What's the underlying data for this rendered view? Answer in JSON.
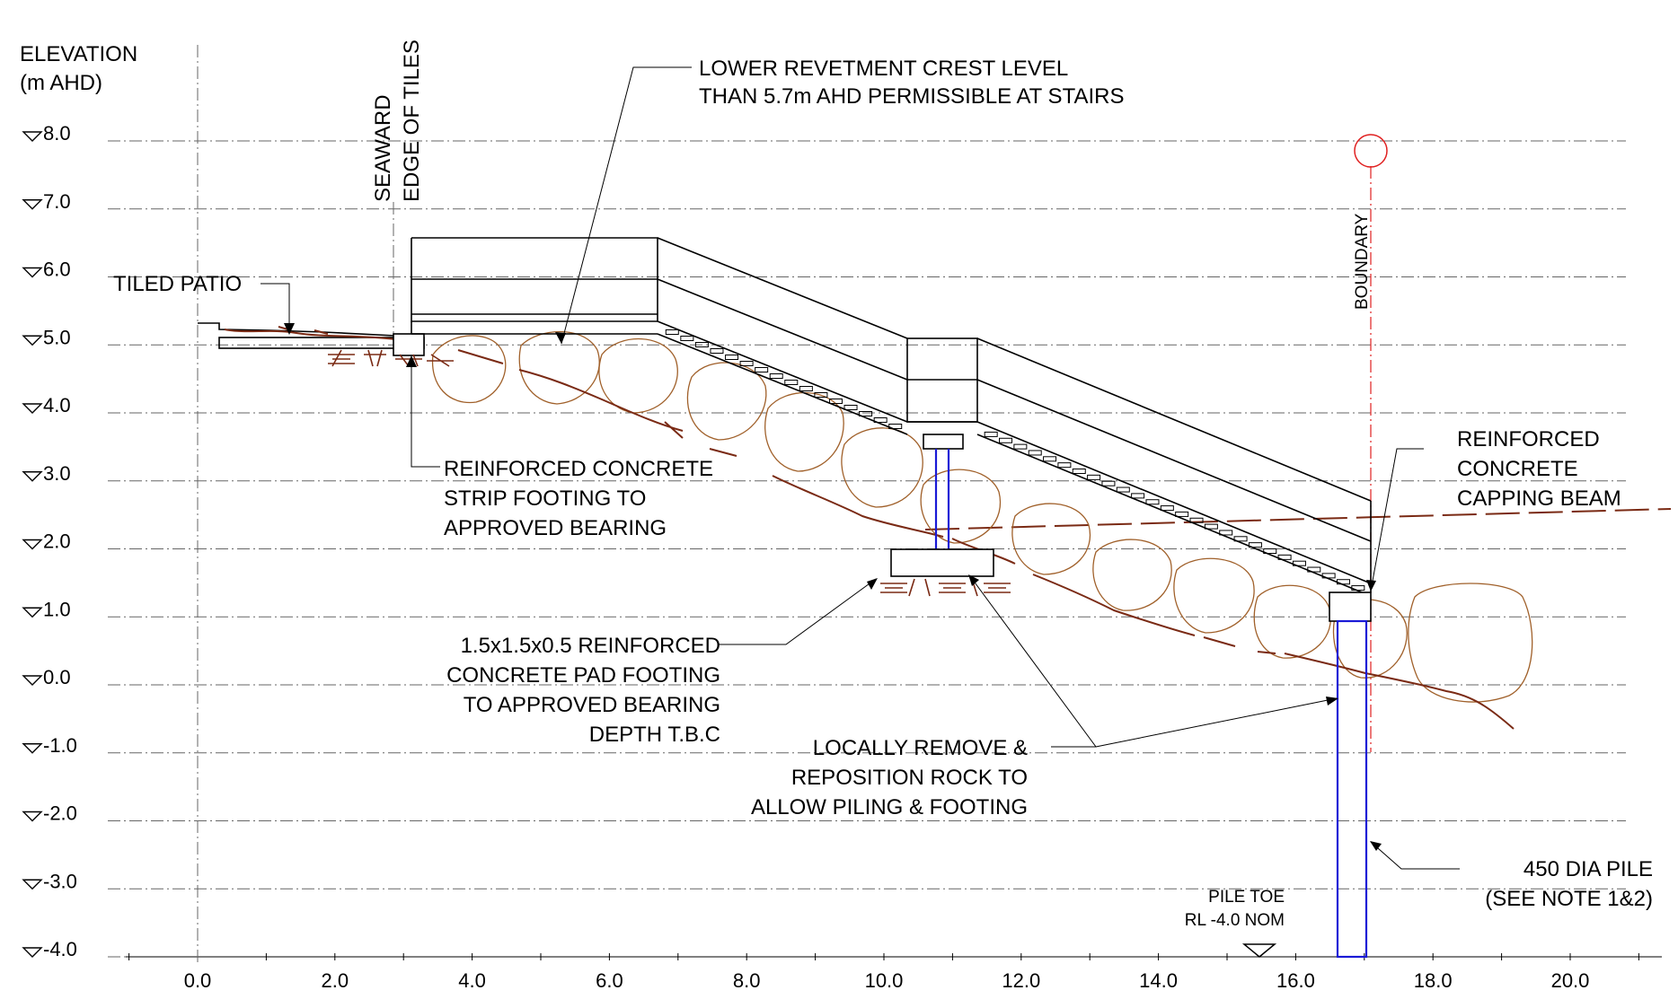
{
  "axis": {
    "ylabel_line1": "ELEVATION",
    "ylabel_line2": "(m AHD)",
    "y_levels": [
      {
        "value": 8.0,
        "label": "8.0"
      },
      {
        "value": 7.0,
        "label": "7.0"
      },
      {
        "value": 6.0,
        "label": "6.0"
      },
      {
        "value": 5.0,
        "label": "5.0"
      },
      {
        "value": 4.0,
        "label": "4.0"
      },
      {
        "value": 3.0,
        "label": "3.0"
      },
      {
        "value": 2.0,
        "label": "2.0"
      },
      {
        "value": 1.0,
        "label": "1.0"
      },
      {
        "value": 0.0,
        "label": "0.0"
      },
      {
        "value": -1.0,
        "label": "-1.0"
      },
      {
        "value": -2.0,
        "label": "-2.0"
      },
      {
        "value": -3.0,
        "label": "-3.0"
      },
      {
        "value": -4.0,
        "label": "-4.0"
      }
    ],
    "x_ticks": [
      {
        "value": 0,
        "label": "0.0"
      },
      {
        "value": 2,
        "label": "2.0"
      },
      {
        "value": 4,
        "label": "4.0"
      },
      {
        "value": 6,
        "label": "6.0"
      },
      {
        "value": 8,
        "label": "8.0"
      },
      {
        "value": 10,
        "label": "10.0"
      },
      {
        "value": 12,
        "label": "12.0"
      },
      {
        "value": 14,
        "label": "14.0"
      },
      {
        "value": 16,
        "label": "16.0"
      },
      {
        "value": 18,
        "label": "18.0"
      },
      {
        "value": 20,
        "label": "20.0"
      }
    ]
  },
  "labels": {
    "seaward_line1": "SEAWARD",
    "seaward_line2": "EDGE OF TILES",
    "crest_line1": "LOWER REVETMENT CREST LEVEL",
    "crest_line2": "THAN 5.7m AHD PERMISSIBLE AT STAIRS",
    "tiled_patio": "TILED PATIO",
    "boundary": "BOUNDARY",
    "strip_line1": "REINFORCED CONCRETE",
    "strip_line2": "STRIP FOOTING TO",
    "strip_line3": "APPROVED BEARING",
    "capping_line1": "REINFORCED",
    "capping_line2": "CONCRETE",
    "capping_line3": "CAPPING BEAM",
    "pad_line1": "1.5x1.5x0.5 REINFORCED",
    "pad_line2": "CONCRETE PAD FOOTING",
    "pad_line3": "TO APPROVED BEARING",
    "pad_line4": "DEPTH T.B.C",
    "rock_line1": "LOCALLY REMOVE &",
    "rock_line2": "REPOSITION ROCK TO",
    "rock_line3": "ALLOW PILING & FOOTING",
    "pile_line1": "450 DIA PILE",
    "pile_line2": "(SEE NOTE 1&2)",
    "toe_line1": "PILE TOE",
    "toe_line2": "RL -4.0 NOM"
  },
  "colors": {
    "pile": "#1a1ad6",
    "boundary": "#e02020",
    "rock": "#a0602a",
    "ground": "#7a2a14"
  }
}
